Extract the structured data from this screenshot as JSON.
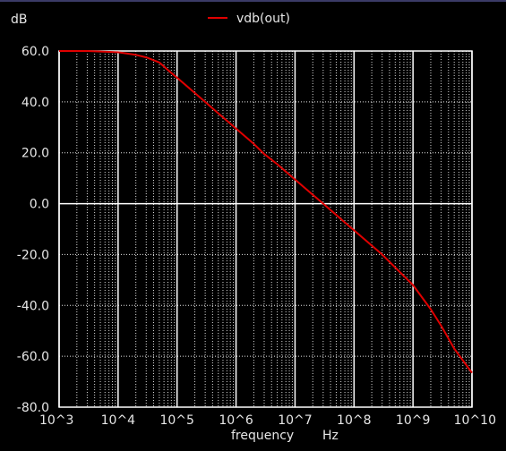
{
  "chart_data": {
    "type": "line",
    "ylabel": "dB",
    "xlabel": "frequency",
    "xunit": "Hz",
    "xscale": "log",
    "xlim": [
      1000,
      10000000000
    ],
    "ylim": [
      -80,
      60
    ],
    "grid": true,
    "legend_position": "top-center",
    "background": "#000000",
    "axis_color": "#ffffff",
    "grid_color": "#ffffff",
    "x_ticks": [
      {
        "value": 1000,
        "label": "10^3"
      },
      {
        "value": 10000,
        "label": "10^4"
      },
      {
        "value": 100000,
        "label": "10^5"
      },
      {
        "value": 1000000,
        "label": "10^6"
      },
      {
        "value": 10000000,
        "label": "10^7"
      },
      {
        "value": 100000000,
        "label": "10^8"
      },
      {
        "value": 1000000000,
        "label": "10^9"
      },
      {
        "value": 10000000000,
        "label": "10^10"
      }
    ],
    "y_ticks": [
      {
        "value": 60,
        "label": "60.0"
      },
      {
        "value": 40,
        "label": "40.0"
      },
      {
        "value": 20,
        "label": "20.0"
      },
      {
        "value": 0,
        "label": "0.0"
      },
      {
        "value": -20,
        "label": "-20.0"
      },
      {
        "value": -40,
        "label": "-40.0"
      },
      {
        "value": -60,
        "label": "-60.0"
      },
      {
        "value": -80,
        "label": "-80.0"
      }
    ],
    "series": [
      {
        "name": "vdb(out)",
        "color": "#e00000",
        "x": [
          1000,
          3000,
          10000,
          20000,
          30000,
          50000,
          70000,
          100000,
          200000,
          300000,
          500000,
          1000000,
          2000000,
          3000000,
          5000000,
          10000000,
          30000000,
          100000000,
          300000000,
          1000000000,
          2000000000,
          3000000000,
          5000000000,
          10000000000
        ],
        "y": [
          60,
          60,
          59.5,
          58.5,
          57.5,
          55.5,
          52.5,
          49.5,
          43.5,
          40,
          35.5,
          29.5,
          23.5,
          19.5,
          15.5,
          9.5,
          0,
          -10.5,
          -20,
          -32,
          -41.5,
          -48,
          -57,
          -66.5
        ]
      }
    ]
  }
}
